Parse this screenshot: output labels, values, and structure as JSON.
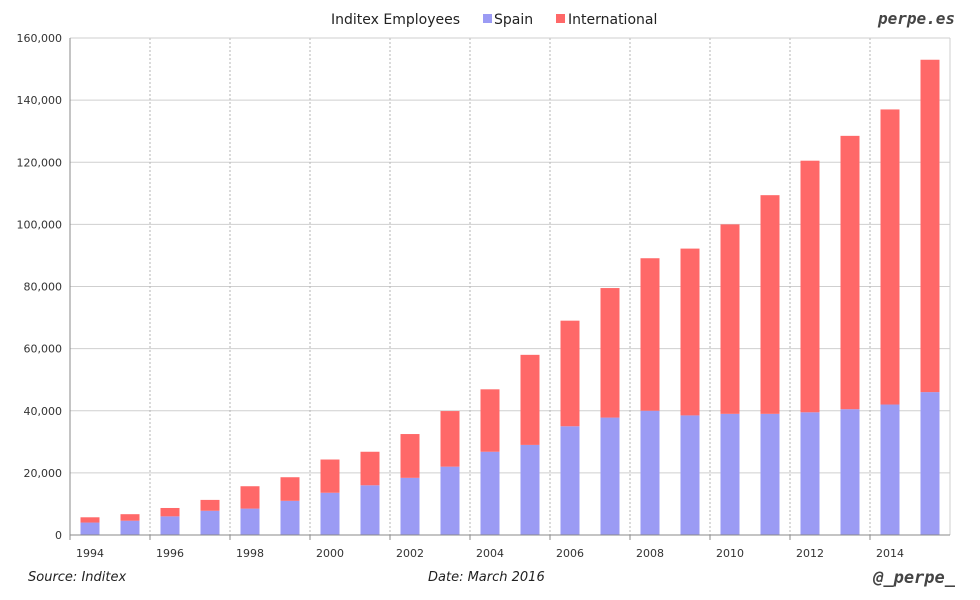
{
  "chart_data": {
    "type": "bar",
    "stacked": true,
    "title": "Inditex Employees",
    "categories": [
      "1994",
      "1995",
      "1996",
      "1997",
      "1998",
      "1999",
      "2000",
      "2001",
      "2002",
      "2003",
      "2004",
      "2005",
      "2006",
      "2007",
      "2008",
      "2009",
      "2010",
      "2011",
      "2012",
      "2013",
      "2014",
      "2015"
    ],
    "series": [
      {
        "name": "Spain",
        "color": "#9b9bf4",
        "values": [
          4000,
          4600,
          6000,
          7800,
          8500,
          11000,
          13600,
          16000,
          18400,
          22000,
          26800,
          29000,
          35000,
          37800,
          40000,
          38500,
          39000,
          39000,
          39500,
          40500,
          42000,
          46000
        ]
      },
      {
        "name": "International",
        "color": "#ff6868",
        "values": [
          1700,
          2100,
          2700,
          3500,
          7200,
          7600,
          10700,
          10800,
          14100,
          17900,
          20100,
          29000,
          34000,
          41700,
          49100,
          53700,
          61000,
          70400,
          81000,
          88000,
          95000,
          107000
        ]
      }
    ],
    "ylim": [
      0,
      160000
    ],
    "yticks": [
      "0",
      "20,000",
      "40,000",
      "60,000",
      "80,000",
      "100,000",
      "120,000",
      "140,000",
      "160,000"
    ],
    "ytick_values": [
      0,
      20000,
      40000,
      60000,
      80000,
      100000,
      120000,
      140000,
      160000
    ],
    "xtick_labels": [
      "1994",
      "1996",
      "1998",
      "2000",
      "2002",
      "2004",
      "2006",
      "2008",
      "2010",
      "2012",
      "2014"
    ],
    "grid": true,
    "legend": "top"
  },
  "branding": {
    "site": "perpe.es",
    "handle": "@_perpe_"
  },
  "footer": {
    "source": "Source: Inditex",
    "date": "Date: March 2016"
  }
}
